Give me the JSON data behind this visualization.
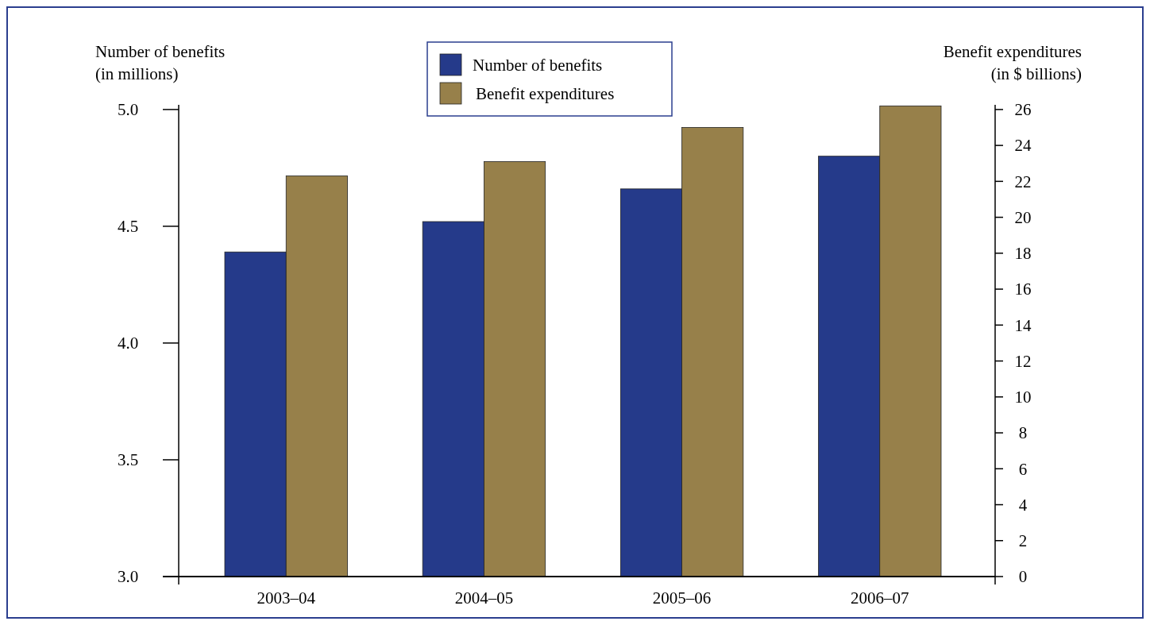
{
  "chart_data": {
    "type": "bar",
    "categories": [
      "2003–04",
      "2004–05",
      "2005–06",
      "2006–07"
    ],
    "series": [
      {
        "name": "Number of benefits",
        "color": "#253a8a",
        "values": [
          4.39,
          4.52,
          4.66,
          4.8
        ]
      },
      {
        "name": "Benefit expenditures",
        "color": "#97804a",
        "values": [
          22.3,
          23.1,
          25.0,
          26.2
        ],
        "axis": "y2"
      }
    ],
    "ylabel": "Number of benefits\n(in millions)",
    "y2label": "Benefit expenditures\n(in $ billions)",
    "ylim": [
      3,
      5.02
    ],
    "yticks": [
      {
        "value": 3,
        "label": "3.0"
      },
      3.5,
      {
        "value": 4,
        "label": "4.0"
      },
      4.5,
      {
        "value": 5,
        "label": "5.0"
      }
    ],
    "y2lim": [
      0,
      26.26
    ],
    "y2ticks": [
      0,
      2,
      4,
      6,
      8,
      10,
      12,
      14,
      16,
      18,
      20,
      22,
      24,
      26
    ],
    "legend": "top",
    "grid": false
  }
}
